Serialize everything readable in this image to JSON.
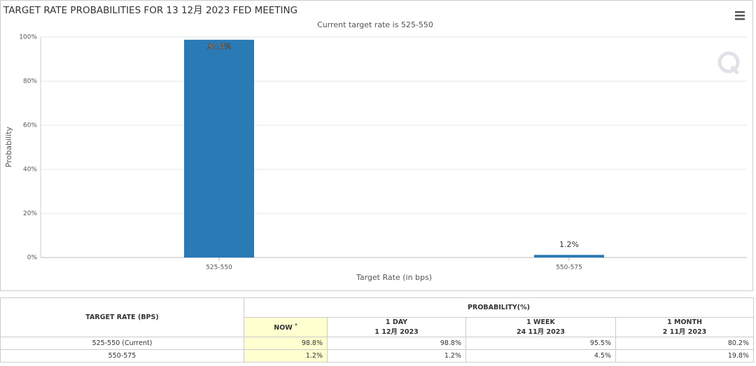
{
  "chart_data": {
    "type": "bar",
    "title": "TARGET RATE PROBABILITIES FOR 13 12月 2023 FED MEETING",
    "subtitle": "Current target rate is 525-550",
    "x_label": "Target Rate (in bps)",
    "y_label": "Probability",
    "categories": [
      "525-550",
      "550-575"
    ],
    "values": [
      98.8,
      1.2
    ],
    "value_labels": [
      "98.8%",
      "1.2%"
    ],
    "color": "#2a7ab5",
    "ylim": [
      0,
      100
    ],
    "yticks": [
      {
        "value": 0,
        "label": "0%"
      },
      {
        "value": 20,
        "label": "20%"
      },
      {
        "value": 40,
        "label": "40%"
      },
      {
        "value": 60,
        "label": "60%"
      },
      {
        "value": 80,
        "label": "80%"
      },
      {
        "value": 100,
        "label": "100%"
      }
    ],
    "grid": true
  },
  "table": {
    "rate_header": "TARGET RATE (BPS)",
    "probability_header": "PROBABILITY(%)",
    "columns": [
      {
        "label": "NOW",
        "note": "*"
      },
      {
        "label": "1 DAY",
        "date": "1 12月 2023"
      },
      {
        "label": "1 WEEK",
        "date": "24 11月 2023"
      },
      {
        "label": "1 MONTH",
        "date": "2 11月 2023"
      }
    ],
    "rows": [
      [
        "525-550 (Current)",
        "98.8%",
        "98.8%",
        "95.5%",
        "80.2%"
      ],
      [
        "550-575",
        "1.2%",
        "1.2%",
        "4.5%",
        "19.8%"
      ]
    ]
  }
}
